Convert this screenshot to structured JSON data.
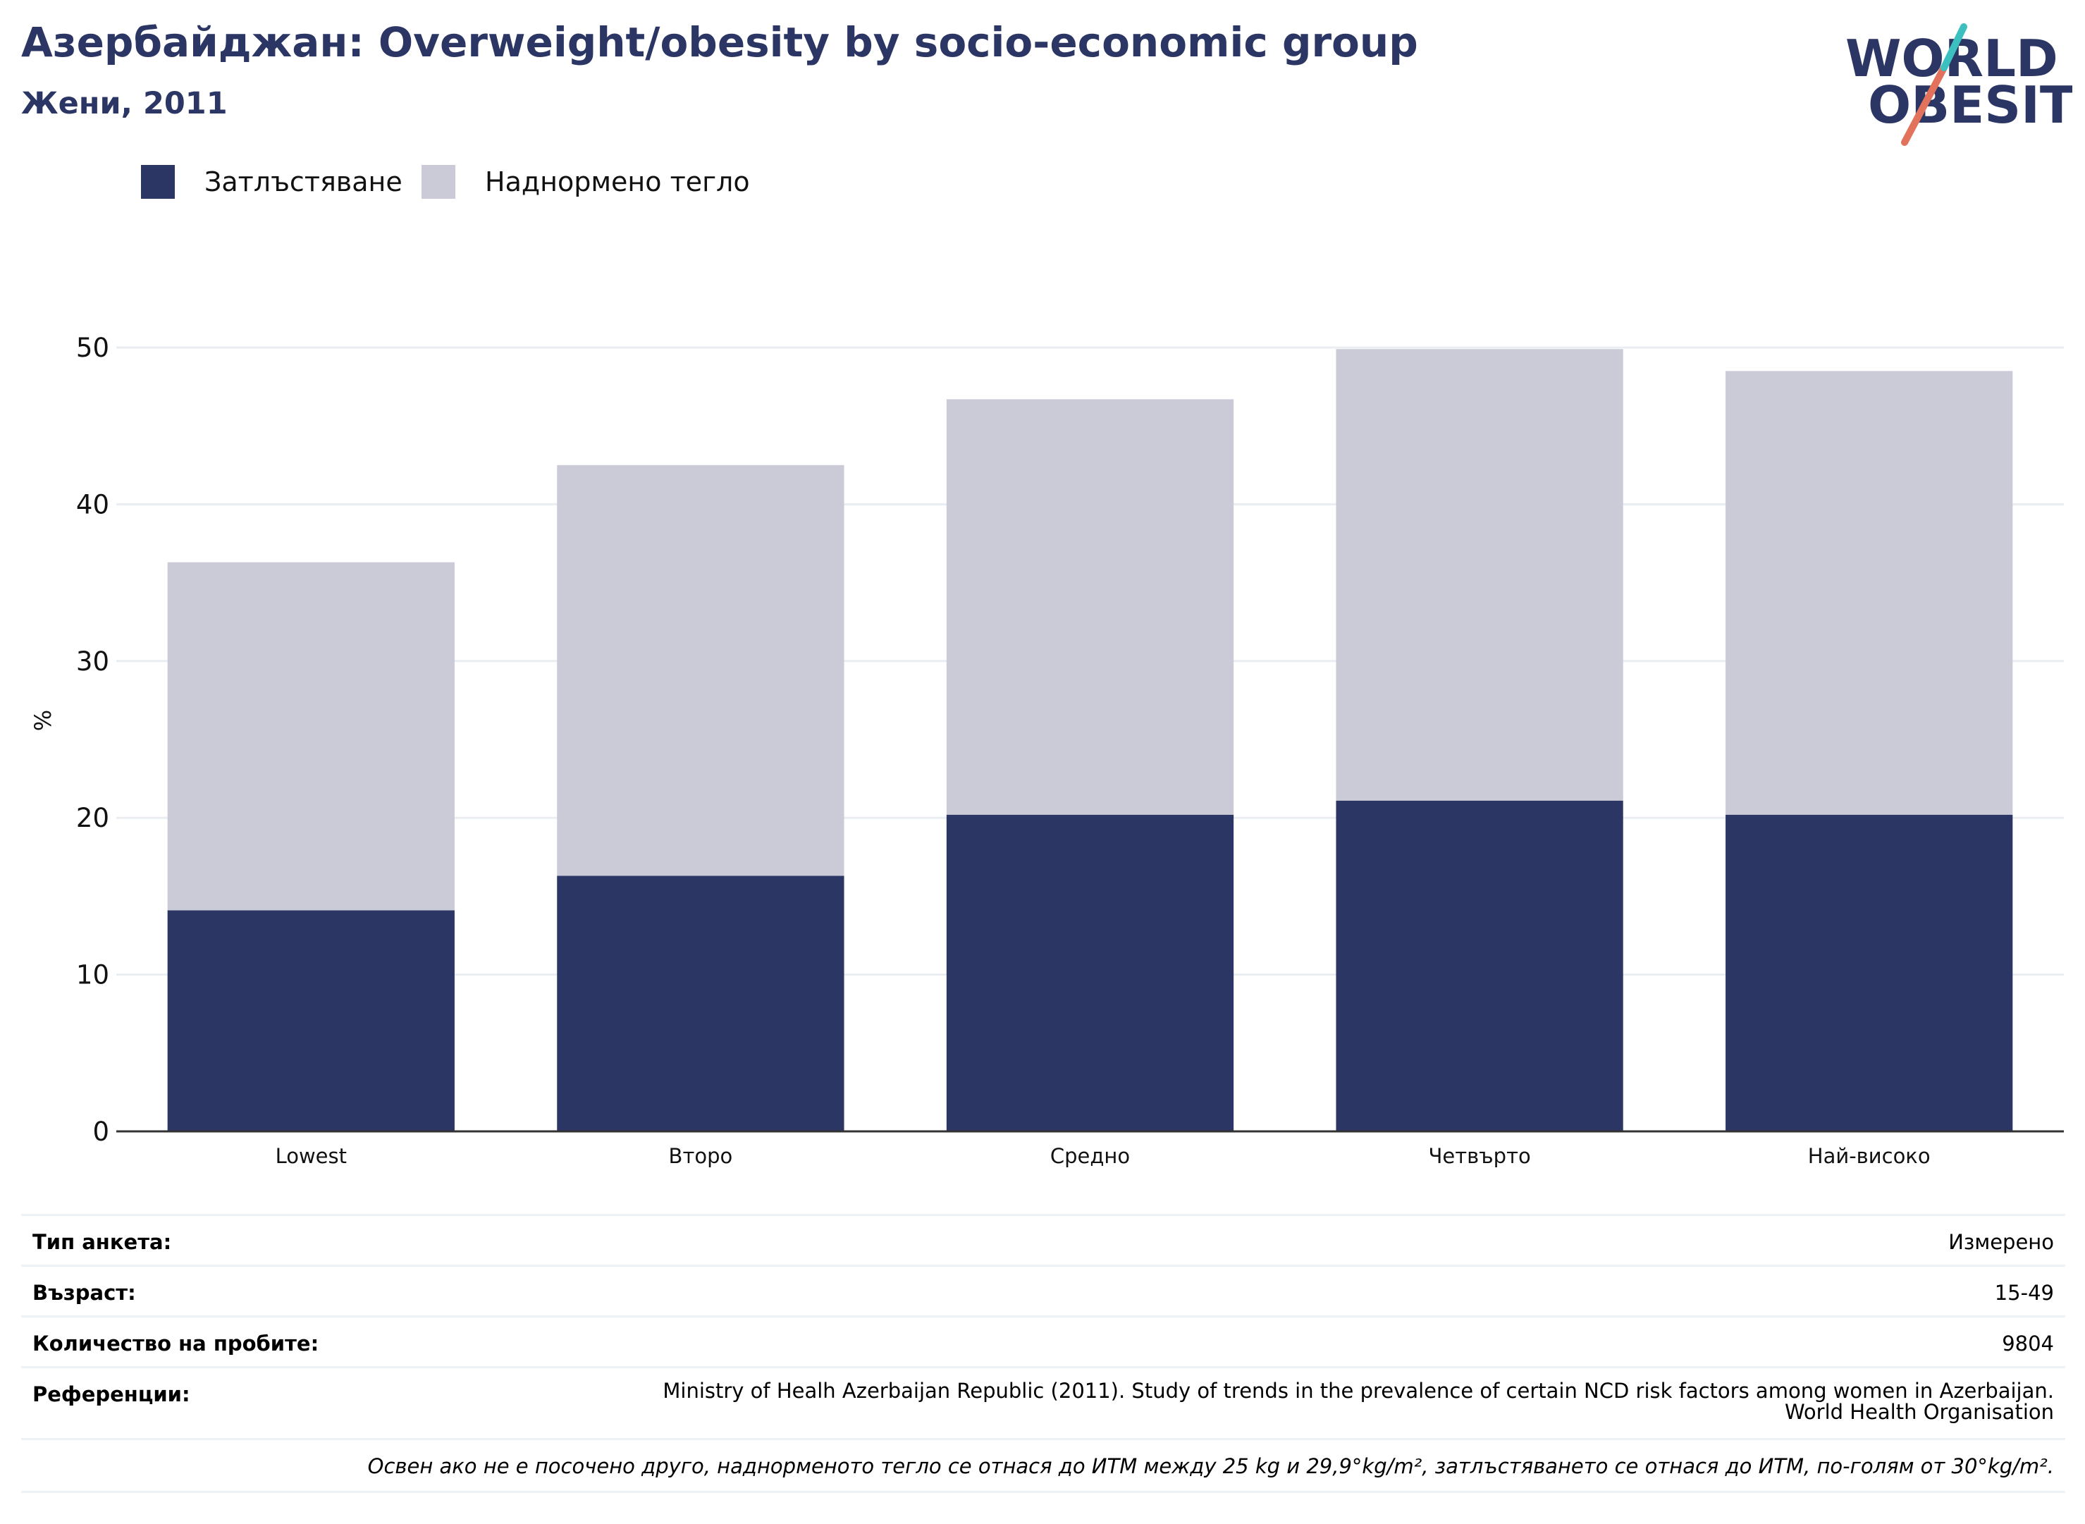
{
  "header": {
    "title": "Азербайджан: Overweight/obesity by socio-economic group",
    "subtitle": "Жени, 2011"
  },
  "logo": {
    "line1": "WORLD",
    "line2": "OBESITY"
  },
  "colors": {
    "obesity": "#2b3664",
    "overweight": "#cacbd7",
    "grid": "#eaedf2",
    "axis": "#333333"
  },
  "chart_data": {
    "type": "bar",
    "stacked": true,
    "categories": [
      "Lowest",
      "Второ",
      "Средно",
      "Четвърто",
      "Най-високо"
    ],
    "series": [
      {
        "name": "Затлъстяване",
        "values": [
          14.1,
          16.3,
          20.2,
          21.1,
          20.2
        ]
      },
      {
        "name": "Наднормено тегло",
        "values": [
          22.2,
          26.2,
          26.5,
          28.8,
          28.3
        ]
      }
    ],
    "ylabel": "%",
    "ylim": [
      0,
      50
    ],
    "yticks": [
      0,
      10,
      20,
      30,
      40,
      50
    ],
    "grid": true,
    "legend": "top-left"
  },
  "info": {
    "survey_type": {
      "label": "Тип анкета:",
      "value": "Измерено"
    },
    "age": {
      "label": "Възраст:",
      "value": "15-49"
    },
    "sample_size": {
      "label": "Количество на пробите:",
      "value": "9804"
    },
    "references": {
      "label": "Референции:",
      "line1": "Ministry of Healh Azerbaijan Republic (2011). Study of trends in the prevalence of certain NCD risk factors among women in Azerbaijan.",
      "line2": "World Health Organisation"
    },
    "note": "Освен ако не е посочено друго, наднорменото тегло се отнася до ИТМ между 25 kg и 29,9°kg/m², затлъстяването се отнася до ИТМ, по-голям от 30°kg/m²."
  }
}
